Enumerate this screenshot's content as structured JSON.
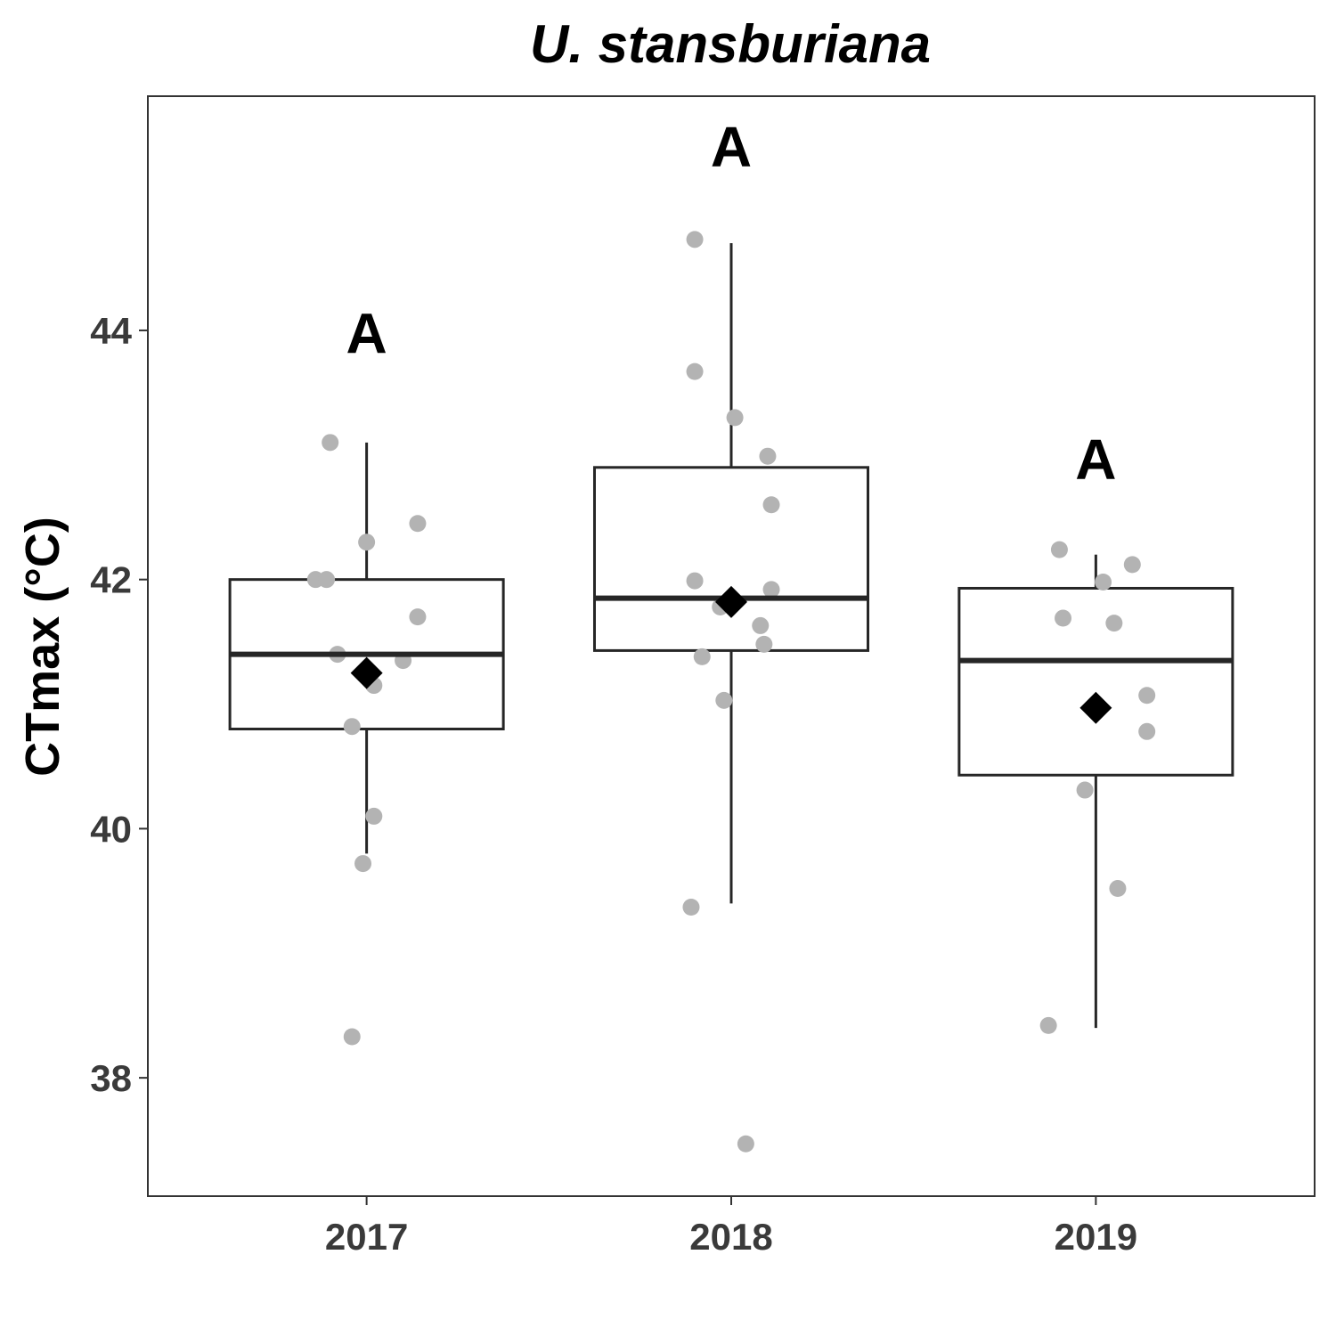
{
  "chart_data": {
    "type": "box",
    "title": "U. stansburiana",
    "xlabel": "",
    "ylabel": "CTmax (°C)",
    "ylim": [
      37.05,
      45.88
    ],
    "yticks": [
      38,
      40,
      42,
      44
    ],
    "grid": false,
    "legend": "none",
    "colors": {
      "box": "#262626",
      "points": "#b3b3b3",
      "mean": "#000000",
      "axis": "#333333"
    },
    "categories": [
      "2017",
      "2018",
      "2019"
    ],
    "boxes": [
      {
        "category": "2017",
        "whisker_low": 39.8,
        "q1": 40.8,
        "median": 41.4,
        "q3": 42.0,
        "whisker_high": 43.1,
        "mean": 41.25,
        "letter": "A",
        "points": [
          {
            "offset": -0.1,
            "y": 43.1
          },
          {
            "offset": 0.14,
            "y": 42.45
          },
          {
            "offset": 0.0,
            "y": 42.3
          },
          {
            "offset": -0.14,
            "y": 42.0
          },
          {
            "offset": -0.11,
            "y": 42.0
          },
          {
            "offset": 0.14,
            "y": 41.7
          },
          {
            "offset": -0.08,
            "y": 41.4
          },
          {
            "offset": 0.1,
            "y": 41.35
          },
          {
            "offset": 0.02,
            "y": 41.15
          },
          {
            "offset": -0.04,
            "y": 40.82
          },
          {
            "offset": 0.02,
            "y": 40.1
          },
          {
            "offset": -0.01,
            "y": 39.72
          },
          {
            "offset": -0.04,
            "y": 38.33
          }
        ]
      },
      {
        "category": "2018",
        "whisker_low": 39.4,
        "q1": 41.43,
        "median": 41.85,
        "q3": 42.9,
        "whisker_high": 44.7,
        "mean": 41.82,
        "letter": "A",
        "points": [
          {
            "offset": -0.1,
            "y": 44.73
          },
          {
            "offset": -0.1,
            "y": 43.67
          },
          {
            "offset": 0.01,
            "y": 43.3
          },
          {
            "offset": 0.1,
            "y": 42.99
          },
          {
            "offset": 0.11,
            "y": 42.6
          },
          {
            "offset": -0.1,
            "y": 41.99
          },
          {
            "offset": 0.11,
            "y": 41.92
          },
          {
            "offset": -0.03,
            "y": 41.78
          },
          {
            "offset": 0.08,
            "y": 41.63
          },
          {
            "offset": 0.09,
            "y": 41.48
          },
          {
            "offset": -0.08,
            "y": 41.38
          },
          {
            "offset": -0.02,
            "y": 41.03
          },
          {
            "offset": -0.11,
            "y": 39.37
          },
          {
            "offset": 0.04,
            "y": 37.47
          }
        ]
      },
      {
        "category": "2019",
        "whisker_low": 38.4,
        "q1": 40.43,
        "median": 41.35,
        "q3": 41.93,
        "whisker_high": 42.2,
        "mean": 40.97,
        "letter": "A",
        "points": [
          {
            "offset": -0.1,
            "y": 42.24
          },
          {
            "offset": 0.1,
            "y": 42.12
          },
          {
            "offset": 0.02,
            "y": 41.98
          },
          {
            "offset": -0.09,
            "y": 41.69
          },
          {
            "offset": 0.05,
            "y": 41.65
          },
          {
            "offset": 0.14,
            "y": 41.07
          },
          {
            "offset": 0.14,
            "y": 40.78
          },
          {
            "offset": -0.03,
            "y": 40.31
          },
          {
            "offset": 0.06,
            "y": 39.52
          },
          {
            "offset": -0.13,
            "y": 38.42
          }
        ]
      }
    ],
    "letter_y": [
      43.98,
      45.48,
      42.97
    ]
  }
}
